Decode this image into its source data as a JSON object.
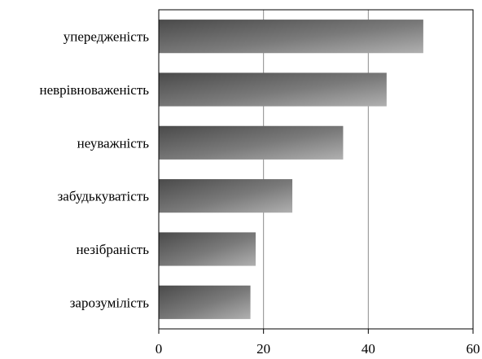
{
  "chart_data": {
    "type": "bar",
    "orientation": "horizontal",
    "title": "",
    "xlabel": "",
    "ylabel": "",
    "categories": [
      "упередженість",
      "неврівноваженість",
      "неуважність",
      "забудькуватість",
      "незібраність",
      "зарозумілість"
    ],
    "values": [
      50.5,
      43.5,
      35.2,
      25.5,
      18.5,
      17.5
    ],
    "xlim": [
      0,
      60
    ],
    "xticks": [
      "0",
      "20",
      "40",
      "60"
    ],
    "grid": "vertical",
    "legend": "none",
    "colors": {
      "bar_dark": "#4a4a4a",
      "bar_mid": "#7a7a7a",
      "bar_light": "#b0b0b0",
      "grid": "#8c8c8c",
      "axis": "#000000"
    }
  }
}
